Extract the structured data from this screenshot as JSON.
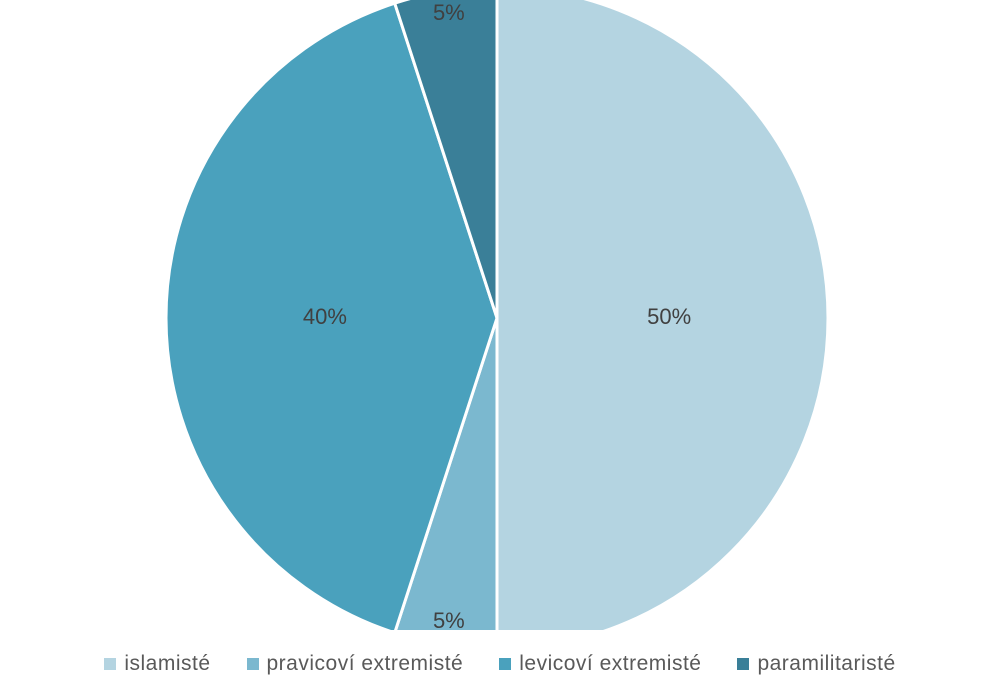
{
  "chart_data": {
    "type": "pie",
    "title": "",
    "categories": [
      "islamisté",
      "pravicoví extremisté",
      "levicoví extremisté",
      "paramilitaristé"
    ],
    "values": [
      50,
      5,
      40,
      5
    ],
    "labels": [
      "50%",
      "5%",
      "40%",
      "5%"
    ],
    "colors": [
      "#b4d4e1",
      "#7bb8cf",
      "#4aa1bd",
      "#3a7f98"
    ],
    "legend_position": "bottom",
    "start_angle_deg": 0,
    "direction": "clockwise"
  }
}
